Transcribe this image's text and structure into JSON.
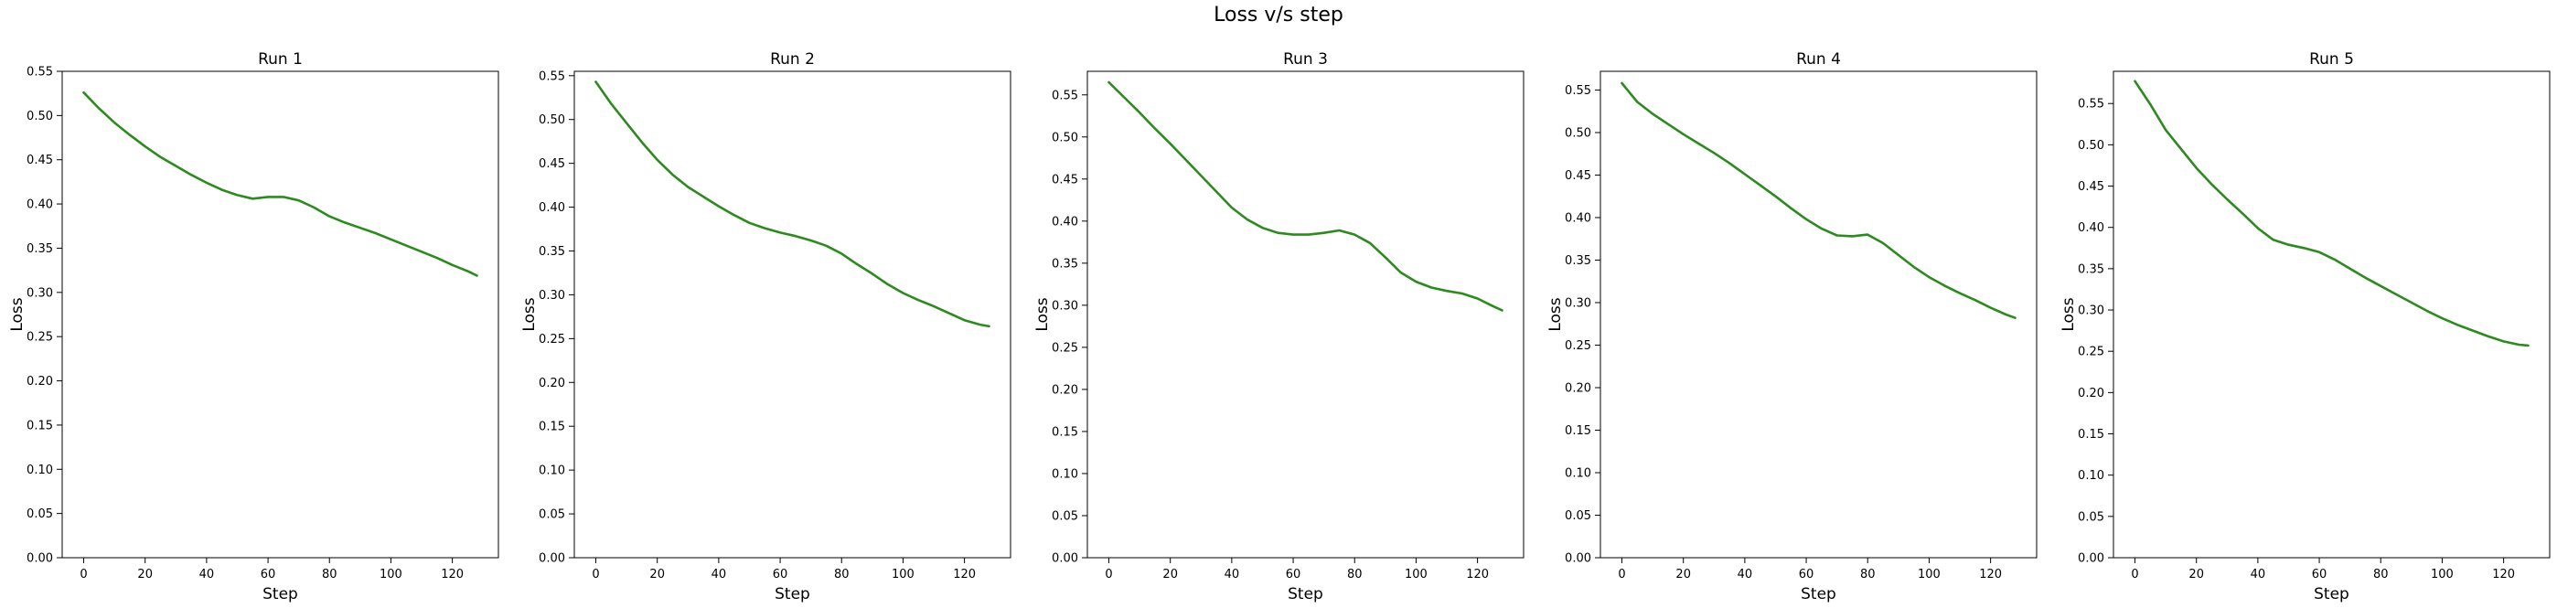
{
  "figure": {
    "title": "Loss v/s step"
  },
  "colors": {
    "line": "#2d8a1f",
    "axis": "#000000"
  },
  "chart_data": [
    {
      "type": "line",
      "title": "Run 1",
      "xlabel": "Step",
      "ylabel": "Loss",
      "xlim": [
        -7,
        135
      ],
      "ylim": [
        0,
        0.55
      ],
      "xticks": [
        0,
        20,
        40,
        60,
        80,
        100,
        120
      ],
      "yticks": [
        0.0,
        0.05,
        0.1,
        0.15,
        0.2,
        0.25,
        0.3,
        0.35,
        0.4,
        0.45,
        0.5,
        0.55
      ],
      "x": [
        0,
        5,
        10,
        15,
        20,
        25,
        30,
        35,
        40,
        45,
        50,
        55,
        60,
        65,
        70,
        75,
        80,
        85,
        90,
        95,
        100,
        105,
        110,
        115,
        120,
        125,
        128
      ],
      "y": [
        0.526,
        0.508,
        0.492,
        0.478,
        0.465,
        0.453,
        0.443,
        0.433,
        0.424,
        0.416,
        0.41,
        0.406,
        0.408,
        0.408,
        0.404,
        0.396,
        0.386,
        0.379,
        0.373,
        0.367,
        0.36,
        0.353,
        0.346,
        0.339,
        0.331,
        0.324,
        0.319
      ]
    },
    {
      "type": "line",
      "title": "Run 2",
      "xlabel": "Step",
      "ylabel": "Loss",
      "xlim": [
        -7,
        135
      ],
      "ylim": [
        0,
        0.555
      ],
      "xticks": [
        0,
        20,
        40,
        60,
        80,
        100,
        120
      ],
      "yticks": [
        0.0,
        0.05,
        0.1,
        0.15,
        0.2,
        0.25,
        0.3,
        0.35,
        0.4,
        0.45,
        0.5,
        0.55
      ],
      "x": [
        0,
        5,
        10,
        15,
        20,
        25,
        30,
        35,
        40,
        45,
        50,
        55,
        60,
        65,
        70,
        75,
        80,
        85,
        90,
        95,
        100,
        105,
        110,
        115,
        120,
        125,
        128
      ],
      "y": [
        0.543,
        0.518,
        0.496,
        0.474,
        0.454,
        0.437,
        0.423,
        0.412,
        0.401,
        0.391,
        0.382,
        0.376,
        0.371,
        0.367,
        0.362,
        0.356,
        0.347,
        0.335,
        0.324,
        0.312,
        0.302,
        0.294,
        0.287,
        0.279,
        0.271,
        0.266,
        0.264
      ]
    },
    {
      "type": "line",
      "title": "Run 3",
      "xlabel": "Step",
      "ylabel": "Loss",
      "xlim": [
        -7,
        135
      ],
      "ylim": [
        0,
        0.578
      ],
      "xticks": [
        0,
        20,
        40,
        60,
        80,
        100,
        120
      ],
      "yticks": [
        0.0,
        0.05,
        0.1,
        0.15,
        0.2,
        0.25,
        0.3,
        0.35,
        0.4,
        0.45,
        0.5,
        0.55
      ],
      "x": [
        0,
        5,
        10,
        15,
        20,
        25,
        30,
        35,
        40,
        45,
        50,
        55,
        60,
        65,
        70,
        75,
        80,
        85,
        90,
        95,
        100,
        105,
        110,
        115,
        120,
        125,
        128
      ],
      "y": [
        0.565,
        0.547,
        0.529,
        0.51,
        0.492,
        0.473,
        0.454,
        0.435,
        0.416,
        0.402,
        0.392,
        0.386,
        0.384,
        0.384,
        0.386,
        0.389,
        0.384,
        0.374,
        0.357,
        0.339,
        0.328,
        0.321,
        0.317,
        0.314,
        0.308,
        0.299,
        0.294
      ]
    },
    {
      "type": "line",
      "title": "Run 4",
      "xlabel": "Step",
      "ylabel": "Loss",
      "xlim": [
        -7,
        135
      ],
      "ylim": [
        0,
        0.572
      ],
      "xticks": [
        0,
        20,
        40,
        60,
        80,
        100,
        120
      ],
      "yticks": [
        0.0,
        0.05,
        0.1,
        0.15,
        0.2,
        0.25,
        0.3,
        0.35,
        0.4,
        0.45,
        0.5,
        0.55
      ],
      "x": [
        0,
        5,
        10,
        15,
        20,
        25,
        30,
        35,
        40,
        45,
        50,
        55,
        60,
        65,
        70,
        75,
        80,
        85,
        90,
        95,
        100,
        105,
        110,
        115,
        120,
        125,
        128
      ],
      "y": [
        0.558,
        0.536,
        0.522,
        0.51,
        0.498,
        0.487,
        0.476,
        0.464,
        0.451,
        0.438,
        0.425,
        0.411,
        0.398,
        0.387,
        0.379,
        0.378,
        0.38,
        0.37,
        0.356,
        0.342,
        0.33,
        0.32,
        0.311,
        0.303,
        0.294,
        0.286,
        0.282
      ]
    },
    {
      "type": "line",
      "title": "Run 5",
      "xlabel": "Step",
      "ylabel": "Loss",
      "xlim": [
        -7,
        135
      ],
      "ylim": [
        0,
        0.589
      ],
      "xticks": [
        0,
        20,
        40,
        60,
        80,
        100,
        120
      ],
      "yticks": [
        0.0,
        0.05,
        0.1,
        0.15,
        0.2,
        0.25,
        0.3,
        0.35,
        0.4,
        0.45,
        0.5,
        0.55
      ],
      "x": [
        0,
        5,
        10,
        15,
        20,
        25,
        30,
        35,
        40,
        45,
        50,
        55,
        60,
        65,
        70,
        75,
        80,
        85,
        90,
        95,
        100,
        105,
        110,
        115,
        120,
        125,
        128
      ],
      "y": [
        0.577,
        0.549,
        0.518,
        0.495,
        0.472,
        0.452,
        0.434,
        0.417,
        0.399,
        0.385,
        0.379,
        0.375,
        0.37,
        0.361,
        0.35,
        0.339,
        0.329,
        0.319,
        0.309,
        0.299,
        0.29,
        0.282,
        0.275,
        0.268,
        0.262,
        0.258,
        0.257
      ]
    }
  ]
}
